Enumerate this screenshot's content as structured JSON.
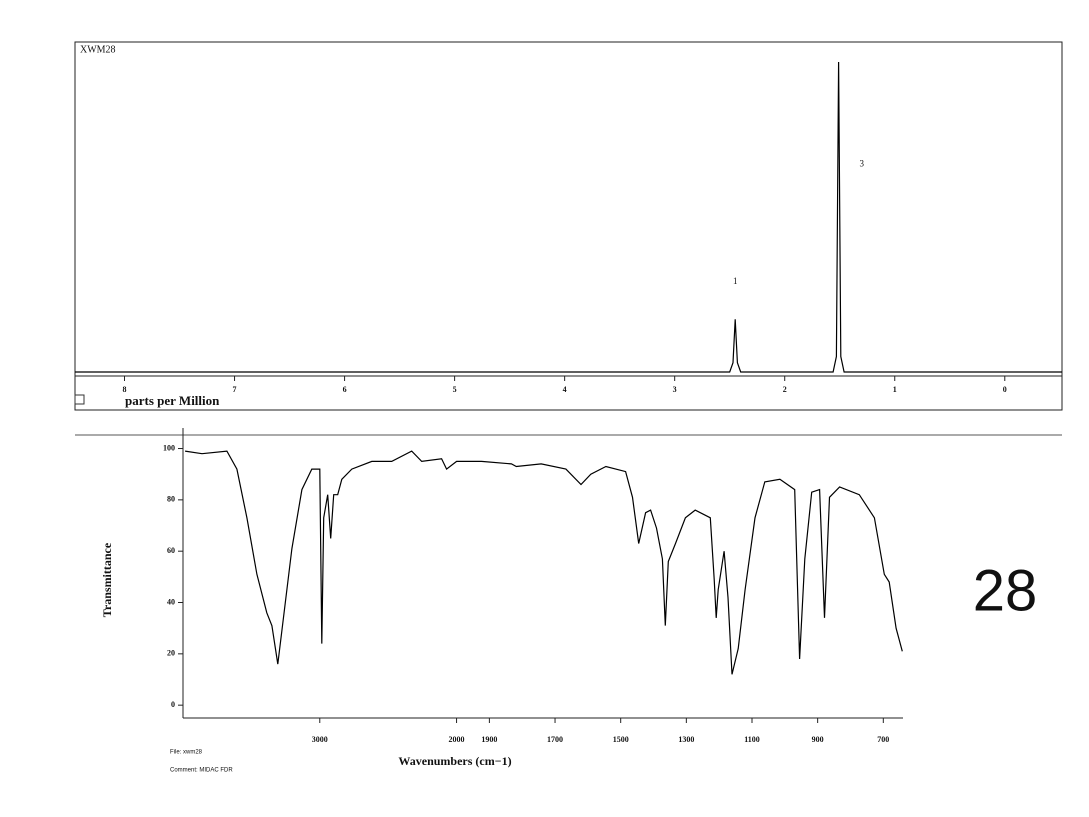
{
  "chart_data": [
    {
      "type": "line",
      "title": "XWM28",
      "xlabel": "parts per Million",
      "x": [
        8.45,
        2.5,
        2.47,
        2.45,
        2.43,
        2.4,
        1.56,
        1.53,
        1.51,
        1.49,
        1.46,
        -0.52
      ],
      "values": [
        0,
        0,
        3,
        17,
        3,
        0,
        0,
        5,
        100,
        5,
        0,
        0
      ],
      "xlim": [
        8.45,
        -0.52
      ],
      "xticks": [
        8,
        7,
        6,
        5,
        4,
        3,
        2,
        1,
        0
      ],
      "ylim": [
        0,
        100
      ],
      "annotations": [
        {
          "text": "1",
          "x": 2.45,
          "y": 29
        },
        {
          "text": "3",
          "x": 1.3,
          "y": 67
        }
      ],
      "color": "#000000"
    },
    {
      "type": "line",
      "xlabel": "Wavenumbers (cm−1)",
      "ylabel": "Transmittance",
      "file": "File: xwm28",
      "comment": "Comment: MIDAC FDR",
      "x": [
        3985,
        3861,
        3679,
        3606,
        3533,
        3460,
        3387,
        3350,
        3307,
        3204,
        3131,
        3058,
        3000,
        2985,
        2971,
        2942,
        2920,
        2898,
        2869,
        2839,
        2766,
        2620,
        2474,
        2328,
        2255,
        2109,
        2073,
        2000,
        1924,
        1833,
        1818,
        1742,
        1667,
        1621,
        1591,
        1545,
        1485,
        1464,
        1445,
        1424,
        1409,
        1391,
        1373,
        1364,
        1355,
        1333,
        1303,
        1273,
        1227,
        1215,
        1209,
        1203,
        1185,
        1173,
        1161,
        1142,
        1121,
        1091,
        1061,
        1015,
        970,
        955,
        939,
        918,
        894,
        879,
        864,
        833,
        773,
        727,
        697,
        682,
        661,
        642
      ],
      "values": [
        99,
        98,
        99,
        92,
        73,
        51,
        36,
        31,
        16,
        61,
        84,
        92,
        92,
        24,
        73,
        82,
        65,
        82,
        82,
        88,
        92,
        95,
        95,
        99,
        95,
        96,
        92,
        95,
        95,
        94,
        93,
        94,
        92,
        86,
        90,
        93,
        91,
        81,
        63,
        75,
        76,
        69,
        57,
        31,
        56,
        63,
        73,
        76,
        73,
        49,
        34,
        45,
        60,
        42,
        12,
        22,
        45,
        73,
        87,
        88,
        84,
        18,
        57,
        83,
        84,
        34,
        81,
        85,
        82,
        73,
        51,
        48,
        30,
        21
      ],
      "xlim": [
        4000,
        640
      ],
      "xbreak": 2000,
      "xbreak_factor": 2.4,
      "xticks": [
        3000,
        2000,
        1900,
        1700,
        1500,
        1300,
        1100,
        900,
        700
      ],
      "ylim": [
        -5,
        108
      ],
      "yticks": [
        0,
        20,
        40,
        60,
        80,
        100
      ],
      "color": "#000000"
    }
  ],
  "page_label": "28"
}
